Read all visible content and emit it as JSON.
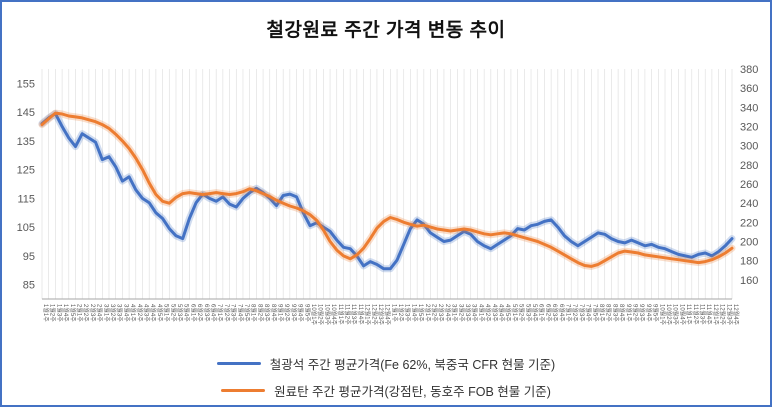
{
  "title": "철강원료 주간 가격 변동 추이",
  "colors": {
    "frame_border": "#4472c4",
    "gridline": "#dcdcdc",
    "axis_line": "#a6a6a6",
    "tick_text": "#595959",
    "series_blue": "#4472c4",
    "series_orange": "#ed7d31"
  },
  "chart_data": {
    "type": "line",
    "title": "철강원료 주간 가격 변동 추이",
    "grid": "vertical",
    "legend_position": "bottom",
    "left_axis": {
      "min": 80,
      "max": 160,
      "ticks": [
        85,
        95,
        105,
        115,
        125,
        135,
        145,
        155
      ]
    },
    "right_axis": {
      "min": 140,
      "max": 380,
      "ticks": [
        160,
        180,
        200,
        220,
        240,
        260,
        280,
        300,
        320,
        340,
        360,
        380
      ]
    },
    "categories": [
      "1월1주",
      "1월2주",
      "1월3주",
      "1월4주",
      "1월5주",
      "2월1주",
      "2월2주",
      "2월3주",
      "2월4주",
      "3월1주",
      "3월2주",
      "3월3주",
      "3월4주",
      "4월1주",
      "4월2주",
      "4월3주",
      "4월4주",
      "4월5주",
      "5월1주",
      "5월2주",
      "5월3주",
      "5월4주",
      "6월1주",
      "6월2주",
      "6월3주",
      "6월4주",
      "7월1주",
      "7월2주",
      "7월3주",
      "7월4주",
      "7월5주",
      "8월1주",
      "8월2주",
      "8월3주",
      "8월4주",
      "9월1주",
      "9월2주",
      "9월3주",
      "9월4주",
      "9월5주",
      "10월1주",
      "10월2주",
      "10월3주",
      "10월4주",
      "11월1주",
      "11월2주",
      "11월3주",
      "11월4주",
      "12월1주",
      "12월2주",
      "12월3주",
      "12월4주",
      "1월1주",
      "1월2주",
      "1월3주",
      "1월4주",
      "1월5주",
      "2월1주",
      "2월2주",
      "2월3주",
      "2월4주",
      "3월1주",
      "3월2주",
      "3월3주",
      "3월4주",
      "4월1주",
      "4월2주",
      "4월3주",
      "4월4주",
      "4월5주",
      "5월1주",
      "5월2주",
      "5월3주",
      "5월4주",
      "6월1주",
      "6월2주",
      "6월3주",
      "6월4주",
      "7월1주",
      "7월2주",
      "7월3주",
      "7월4주",
      "7월5주",
      "8월1주",
      "8월2주",
      "8월3주",
      "8월4주",
      "9월1주",
      "9월2주",
      "9월3주",
      "9월4주",
      "9월5주",
      "10월1주",
      "10월2주",
      "10월3주",
      "10월4주",
      "11월1주",
      "11월2주",
      "11월3주",
      "11월4주",
      "12월1주",
      "12월2주",
      "12월3주",
      "12월4주"
    ],
    "series": [
      {
        "name": "철광석 주간 평균가격(Fe 62%, 북중국 CFR 현물 기준)",
        "axis": "left",
        "color": "#4472c4",
        "values": [
          141,
          143,
          144.5,
          140,
          136,
          133,
          137.5,
          136,
          134.5,
          128.5,
          129.5,
          126,
          121,
          122.5,
          118,
          115,
          113.5,
          110,
          108,
          104.5,
          102,
          101,
          108,
          113.5,
          116.5,
          115,
          114,
          115.5,
          113,
          112,
          115,
          117,
          118.5,
          117,
          115,
          112.5,
          116,
          116.5,
          115.5,
          110,
          105.5,
          106.5,
          105,
          103.5,
          100.5,
          98,
          97.5,
          95,
          91.5,
          93,
          92,
          90.5,
          90.5,
          93.5,
          99,
          104.5,
          107.5,
          106,
          103,
          101.5,
          100,
          100.5,
          102,
          103.5,
          102.5,
          100,
          98.5,
          97.5,
          99,
          100.5,
          102,
          104.5,
          104,
          105.5,
          106,
          107,
          107.5,
          105,
          102,
          100,
          98.5,
          100,
          101.5,
          103,
          102.5,
          101,
          100,
          99.5,
          100.5,
          99.5,
          98.5,
          99,
          98,
          97.5,
          96.5,
          95.5,
          95,
          94.5,
          95.5,
          96,
          95,
          96.5,
          98.5,
          101
        ]
      },
      {
        "name": "원료탄 주간 평균가격(강점탄, 동호주 FOB 현물 기준)",
        "axis": "right",
        "color": "#ed7d31",
        "values": [
          322,
          328,
          334,
          333,
          331,
          330,
          329,
          327,
          325,
          322,
          318,
          312,
          305,
          297,
          287,
          275,
          261,
          249,
          242,
          240,
          246,
          250,
          251,
          250,
          249,
          250,
          251,
          250,
          249,
          250,
          252,
          255,
          253,
          250,
          247,
          243,
          240,
          237,
          235,
          232,
          228,
          222,
          212,
          200,
          191,
          185,
          182,
          186,
          193,
          203,
          214,
          221,
          225,
          223,
          220,
          218,
          216,
          217,
          215,
          213,
          212,
          211,
          212,
          213,
          212,
          210,
          208,
          207,
          208,
          209,
          208,
          206,
          204,
          202,
          200,
          197,
          194,
          190,
          186,
          182,
          178,
          175,
          174,
          176,
          180,
          184,
          188,
          190,
          189,
          188,
          186,
          185,
          184,
          183,
          182,
          181,
          180,
          179,
          178,
          179,
          181,
          184,
          188,
          193
        ]
      }
    ]
  }
}
